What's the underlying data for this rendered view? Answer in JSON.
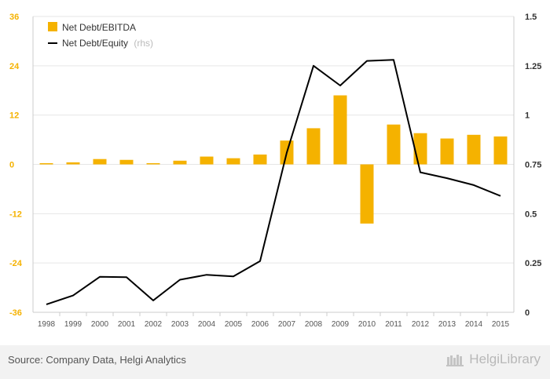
{
  "chart_data": {
    "type": "bar+line",
    "categories": [
      "1998",
      "1999",
      "2000",
      "2001",
      "2002",
      "2003",
      "2004",
      "2005",
      "2006",
      "2007",
      "2008",
      "2009",
      "2010",
      "2011",
      "2012",
      "2013",
      "2014",
      "2015"
    ],
    "series": [
      {
        "name": "Net Debt/EBITDA",
        "type": "bar",
        "axis": "left",
        "color": "#f5b200",
        "values": [
          0.3,
          0.5,
          1.3,
          1.1,
          0.3,
          0.9,
          1.9,
          1.5,
          2.4,
          5.8,
          8.8,
          16.8,
          -14.4,
          9.7,
          7.6,
          6.3,
          7.2,
          6.8
        ]
      },
      {
        "name": "Net Debt/Equity",
        "name_suffix": "(rhs)",
        "type": "line",
        "axis": "right",
        "color": "#000000",
        "values": [
          0.04,
          0.085,
          0.18,
          0.178,
          0.06,
          0.165,
          0.19,
          0.182,
          0.26,
          0.81,
          1.25,
          1.15,
          1.275,
          1.28,
          0.71,
          0.68,
          0.645,
          0.59
        ]
      }
    ],
    "y_left": {
      "min": -36,
      "max": 36,
      "ticks": [
        36,
        24,
        12,
        0,
        -12,
        -24,
        -36
      ],
      "tick_labels": [
        "36",
        "24",
        "12",
        "0",
        "-12",
        "-24",
        "-36"
      ]
    },
    "y_right": {
      "min": 0,
      "max": 1.5,
      "ticks": [
        1.5,
        1.25,
        1,
        0.75,
        0.5,
        0.25,
        0
      ],
      "tick_labels": [
        "1.5",
        "1.25",
        "1",
        "0.75",
        "0.5",
        "0.25",
        "0"
      ]
    },
    "grid": true,
    "legend_position": "top-left"
  },
  "footer": {
    "source": "Source: Company Data, Helgi Analytics",
    "brand": "HelgiLibrary"
  },
  "colors": {
    "bar": "#f5b200",
    "line": "#000000",
    "grid": "#e6e6e6",
    "left_axis_text": "#f5b200"
  }
}
